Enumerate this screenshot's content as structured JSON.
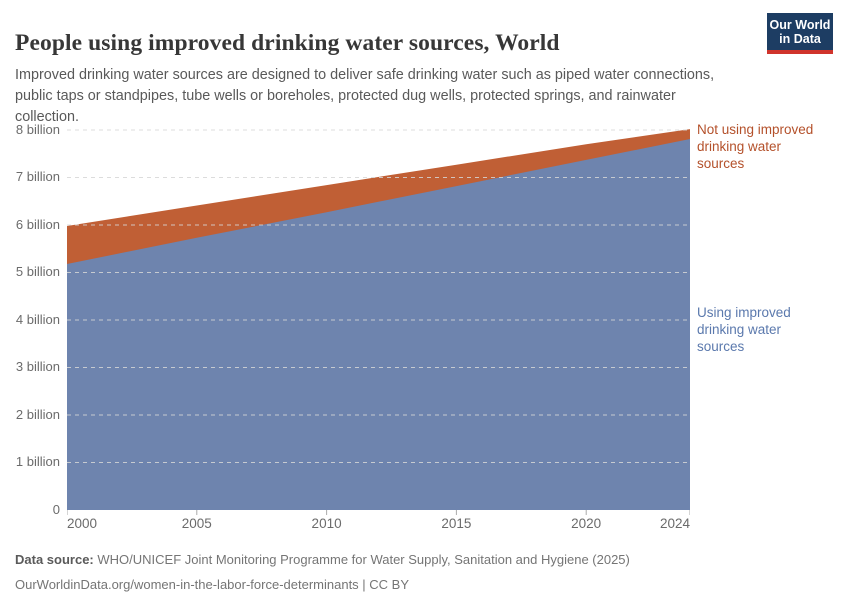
{
  "header": {
    "title": "People using improved drinking water sources, World",
    "subtitle": "Improved drinking water sources are designed to deliver safe drinking water such as piped water connections, public taps or standpipes, tube wells or boreholes, protected dug wells, protected springs, and rainwater collection.",
    "logo": {
      "line1": "Our World",
      "line2": "in Data",
      "bg_color": "#1d3d63",
      "accent_color": "#d0342c"
    }
  },
  "chart_data": {
    "type": "area",
    "stacked": true,
    "title": "People using improved drinking water sources, World",
    "unit": "billion people",
    "x": [
      2000,
      2005,
      2010,
      2015,
      2020,
      2024
    ],
    "x_tick_labels": [
      "2000",
      "2005",
      "2010",
      "2015",
      "2020",
      "2024"
    ],
    "x_range": [
      2000,
      2024
    ],
    "y_range": [
      0,
      8
    ],
    "y_tick_values": [
      0,
      1,
      2,
      3,
      4,
      5,
      6,
      7,
      8
    ],
    "y_tick_labels": [
      "0",
      "1 billion",
      "2 billion",
      "3 billion",
      "4 billion",
      "5 billion",
      "6 billion",
      "7 billion",
      "8 billion"
    ],
    "gridlines": "dashed-horizontal",
    "legend_position": "right-edge-labels",
    "series": [
      {
        "name": "Using improved drinking water sources",
        "color": "#6e84ae",
        "label_color": "#5b79ad",
        "values": [
          5.18,
          5.73,
          6.27,
          6.82,
          7.37,
          7.81
        ]
      },
      {
        "name": "Not using improved drinking water sources",
        "color": "#c05f35",
        "label_color": "#b4512b",
        "values": [
          0.8,
          0.68,
          0.57,
          0.45,
          0.33,
          0.21
        ]
      }
    ],
    "stacked_totals": [
      5.98,
      6.41,
      6.84,
      7.27,
      7.7,
      8.02
    ]
  },
  "footer": {
    "data_source_label": "Data source:",
    "data_source_text": "WHO/UNICEF Joint Monitoring Programme for Water Supply, Sanitation and Hygiene (2025)",
    "link_line": "OurWorldinData.org/women-in-the-labor-force-determinants | CC BY"
  }
}
